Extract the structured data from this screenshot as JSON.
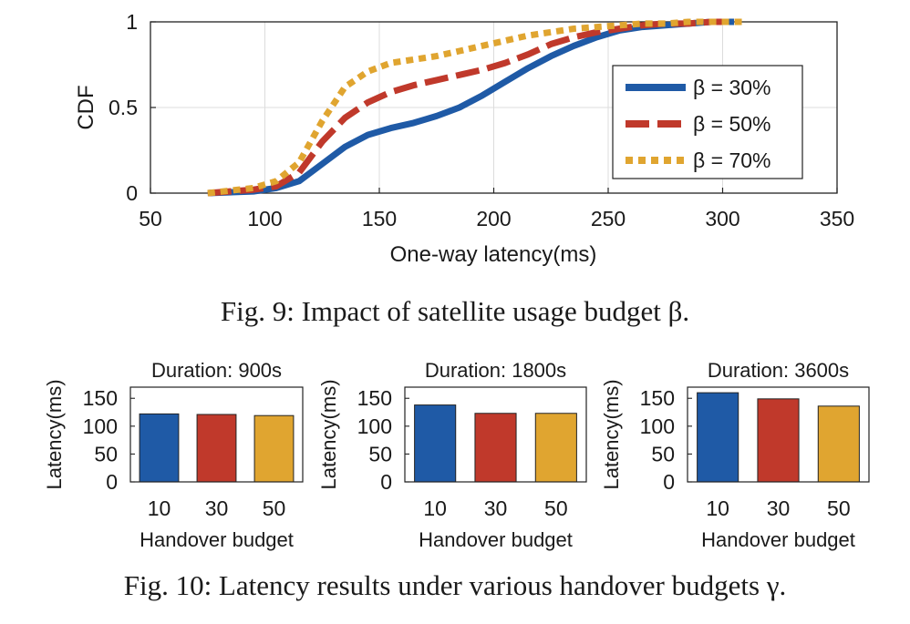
{
  "chart_data": [
    {
      "type": "line",
      "title": "",
      "xlabel": "One-way latency(ms)",
      "ylabel": "CDF",
      "xlim": [
        50,
        350
      ],
      "ylim": [
        0,
        1
      ],
      "x_ticks": [
        "50",
        "100",
        "150",
        "200",
        "250",
        "300",
        "350"
      ],
      "y_ticks": [
        "0",
        "0.5",
        "1"
      ],
      "grid": true,
      "legend_position": "right",
      "series": [
        {
          "name": "β = 30%",
          "color": "#1f5aa6",
          "style": "solid",
          "x": [
            75,
            95,
            105,
            115,
            125,
            135,
            145,
            155,
            165,
            175,
            185,
            195,
            205,
            215,
            225,
            235,
            245,
            255,
            265,
            275,
            285,
            295,
            305
          ],
          "y": [
            0.0,
            0.01,
            0.03,
            0.07,
            0.17,
            0.27,
            0.34,
            0.38,
            0.41,
            0.45,
            0.5,
            0.57,
            0.65,
            0.73,
            0.8,
            0.86,
            0.91,
            0.95,
            0.97,
            0.98,
            0.99,
            1.0,
            1.0
          ]
        },
        {
          "name": "β = 50%",
          "color": "#c0392b",
          "style": "dashed",
          "x": [
            75,
            95,
            105,
            115,
            125,
            135,
            145,
            155,
            165,
            175,
            185,
            195,
            205,
            215,
            225,
            235,
            245,
            255,
            265,
            275,
            285,
            295,
            305
          ],
          "y": [
            0.0,
            0.02,
            0.04,
            0.12,
            0.3,
            0.44,
            0.53,
            0.59,
            0.63,
            0.66,
            0.69,
            0.72,
            0.76,
            0.81,
            0.87,
            0.91,
            0.94,
            0.96,
            0.98,
            0.99,
            0.99,
            1.0,
            1.0
          ]
        },
        {
          "name": "β = 70%",
          "color": "#e0a530",
          "style": "dotted",
          "x": [
            75,
            95,
            105,
            115,
            125,
            135,
            145,
            155,
            165,
            175,
            185,
            195,
            205,
            215,
            225,
            235,
            245,
            255,
            265,
            275,
            285,
            295,
            310
          ],
          "y": [
            0.0,
            0.03,
            0.07,
            0.18,
            0.42,
            0.62,
            0.71,
            0.76,
            0.78,
            0.8,
            0.83,
            0.86,
            0.89,
            0.92,
            0.94,
            0.96,
            0.97,
            0.98,
            0.99,
            0.99,
            1.0,
            1.0,
            1.0
          ]
        }
      ]
    },
    {
      "type": "bar",
      "title": "Duration: 900s",
      "xlabel": "Handover budget",
      "ylabel": "Latency(ms)",
      "categories": [
        "10",
        "30",
        "50"
      ],
      "values": [
        122,
        121,
        119
      ],
      "colors": [
        "#1f5aa6",
        "#c0392b",
        "#e0a530"
      ],
      "ylim": [
        0,
        170
      ],
      "y_ticks": [
        "0",
        "50",
        "100",
        "150"
      ]
    },
    {
      "type": "bar",
      "title": "Duration: 1800s",
      "xlabel": "Handover budget",
      "ylabel": "Latency(ms)",
      "categories": [
        "10",
        "30",
        "50"
      ],
      "values": [
        138,
        123,
        123
      ],
      "colors": [
        "#1f5aa6",
        "#c0392b",
        "#e0a530"
      ],
      "ylim": [
        0,
        170
      ],
      "y_ticks": [
        "0",
        "50",
        "100",
        "150"
      ]
    },
    {
      "type": "bar",
      "title": "Duration: 3600s",
      "xlabel": "Handover budget",
      "ylabel": "Latency(ms)",
      "categories": [
        "10",
        "30",
        "50"
      ],
      "values": [
        160,
        149,
        136
      ],
      "colors": [
        "#1f5aa6",
        "#c0392b",
        "#e0a530"
      ],
      "ylim": [
        0,
        170
      ],
      "y_ticks": [
        "0",
        "50",
        "100",
        "150"
      ]
    }
  ],
  "captions": {
    "fig9": "Fig. 9: Impact of satellite usage budget β.",
    "fig10": "Fig. 10: Latency results under various handover budgets γ."
  }
}
